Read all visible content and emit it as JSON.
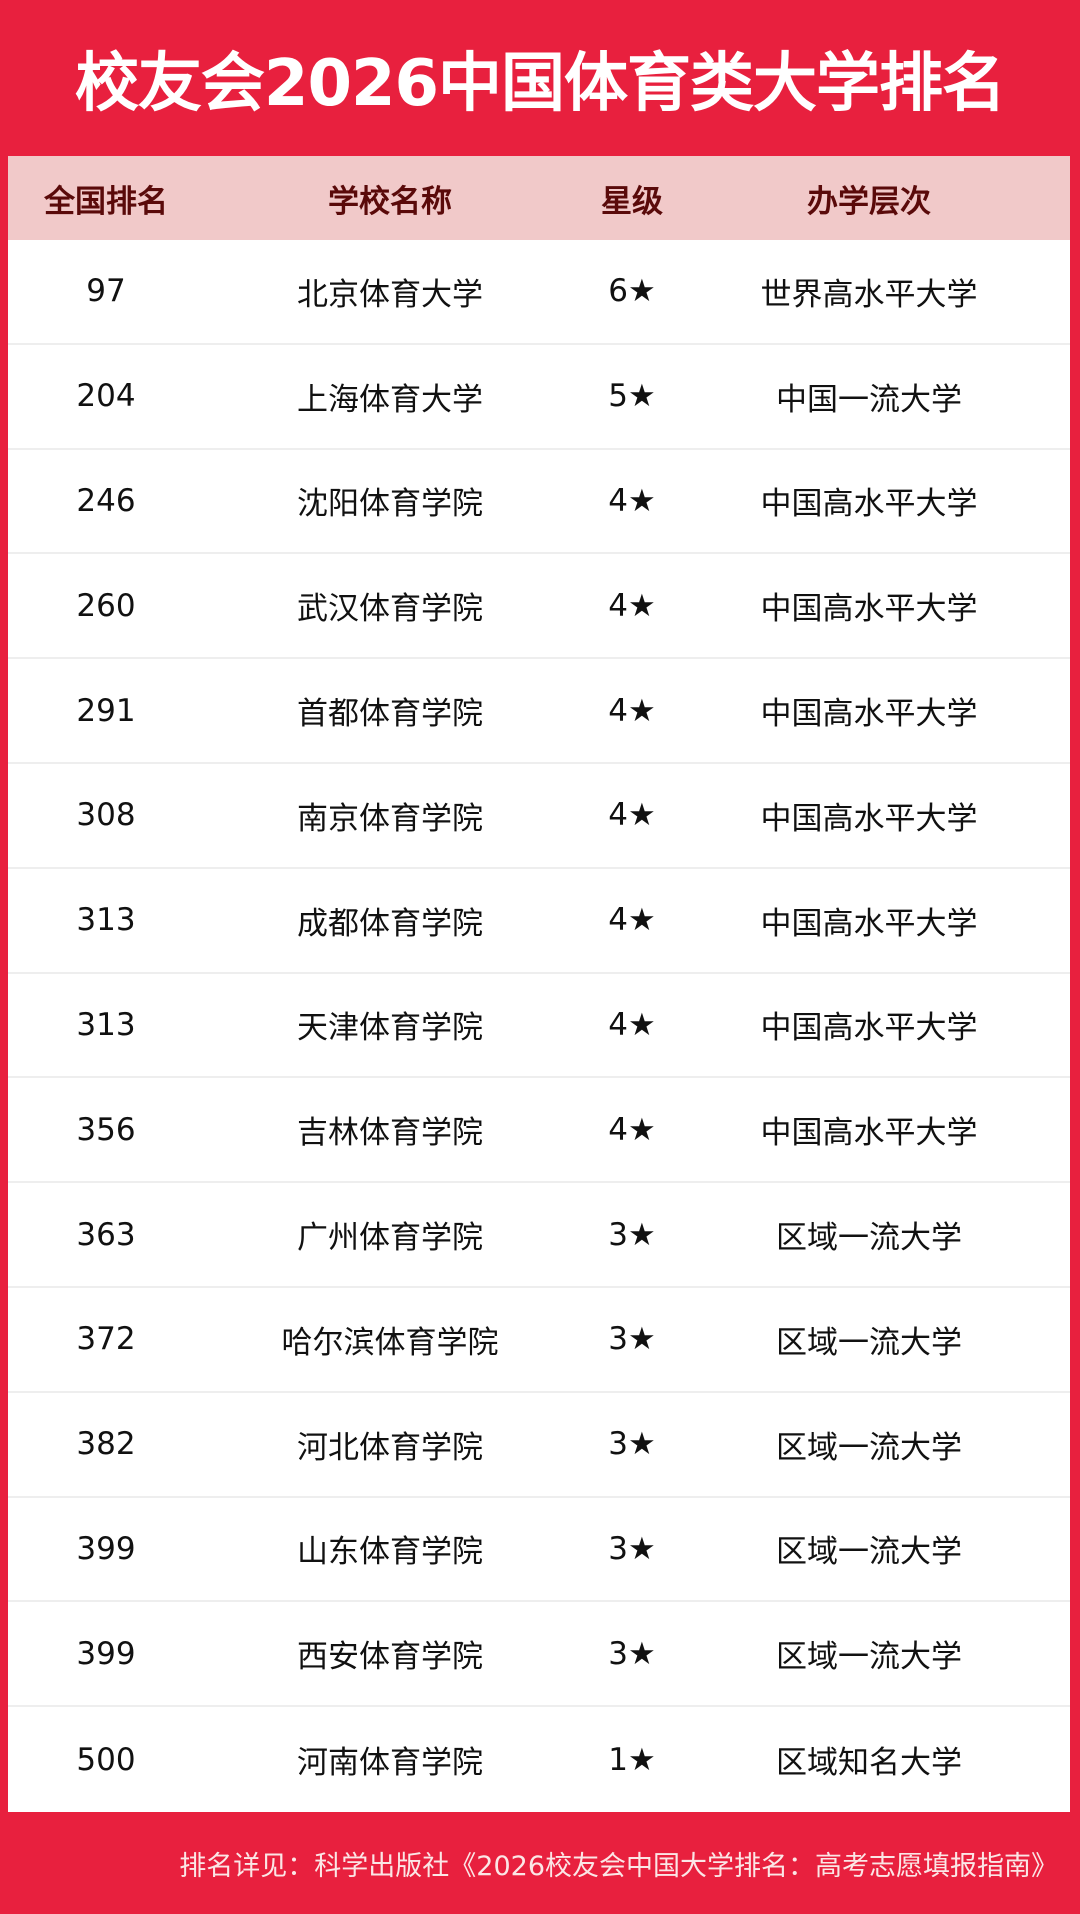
{
  "title": "校友会2026中国体育类大学排名",
  "columns": [
    "全国排名",
    "学校名称",
    "星级",
    "办学层次"
  ],
  "rows": [
    [
      "97",
      "北京体育大学",
      "6★",
      "世界高水平大学"
    ],
    [
      "204",
      "上海体育大学",
      "5★",
      "中国一流大学"
    ],
    [
      "246",
      "沈阳体育学院",
      "4★",
      "中国高水平大学"
    ],
    [
      "260",
      "武汉体育学院",
      "4★",
      "中国高水平大学"
    ],
    [
      "291",
      "首都体育学院",
      "4★",
      "中国高水平大学"
    ],
    [
      "308",
      "南京体育学院",
      "4★",
      "中国高水平大学"
    ],
    [
      "313",
      "成都体育学院",
      "4★",
      "中国高水平大学"
    ],
    [
      "313",
      "天津体育学院",
      "4★",
      "中国高水平大学"
    ],
    [
      "356",
      "吉林体育学院",
      "4★",
      "中国高水平大学"
    ],
    [
      "363",
      "广州体育学院",
      "3★",
      "区域一流大学"
    ],
    [
      "372",
      "哈尔滨体育学院",
      "3★",
      "区域一流大学"
    ],
    [
      "382",
      "河北体育学院",
      "3★",
      "区域一流大学"
    ],
    [
      "399",
      "山东体育学院",
      "3★",
      "区域一流大学"
    ],
    [
      "399",
      "西安体育学院",
      "3★",
      "区域一流大学"
    ],
    [
      "500",
      "河南体育学院",
      "1★",
      "区域知名大学"
    ]
  ],
  "footer": "排名详见：科学出版社《2026校友会中国大学排名：高考志愿填报指南》",
  "colors": {
    "brand_red": "#e8203e",
    "header_bg": "#f1c9c9",
    "header_text": "#5a0a0a"
  }
}
